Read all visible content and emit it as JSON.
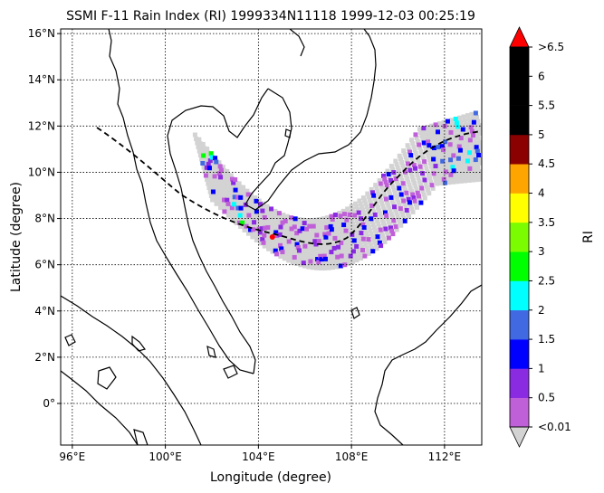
{
  "title": "SSMI F-11 Rain Index (RI) 1999334N11118 1999-12-03 00:25:19",
  "xlabel": "Longitude (degree)",
  "ylabel": "Latitude (degree)",
  "colorbar": {
    "label": "RI",
    "extend_max_label": ">6.5",
    "extend_min_label": "<0.01",
    "tick_labels": [
      "<0.01",
      "0.5",
      "1",
      "1.5",
      "2",
      "2.5",
      "3",
      "3.5",
      "4",
      "4.5",
      "5",
      "5.5",
      "6",
      ">6.5"
    ],
    "bins": [
      {
        "label": "<0.01",
        "color": "#c060d8"
      },
      {
        "label": "0.5",
        "color": "#8a2be2"
      },
      {
        "label": "1",
        "color": "#0000ff"
      },
      {
        "label": "1.5",
        "color": "#4169e1"
      },
      {
        "label": "2",
        "color": "#00ffff"
      },
      {
        "label": "2.5",
        "color": "#00ff00"
      },
      {
        "label": "3",
        "color": "#7cfc00"
      },
      {
        "label": "3.5",
        "color": "#ffff00"
      },
      {
        "label": "4",
        "color": "#ffa500"
      },
      {
        "label": "4.5",
        "color": "#8b0000"
      },
      {
        "label": "5",
        "color": "#000000"
      },
      {
        "label": "5.5",
        "color": "#000000"
      },
      {
        "label": "6",
        "color": "#000000"
      }
    ],
    "over_color": "#ff0000",
    "under_color": "#d3d3d3"
  },
  "map": {
    "lon_range": [
      95.5,
      113.6
    ],
    "lat_range": [
      -1.8,
      16.2
    ],
    "x_ticks": [
      "96°E",
      "100°E",
      "104°E",
      "108°E",
      "112°E"
    ],
    "y_ticks": [
      "0°",
      "2°N",
      "4°N",
      "6°N",
      "8°N",
      "10°N",
      "12°N",
      "14°N",
      "16°N"
    ],
    "grid": "dotted",
    "storm_center": {
      "lon": 104.6,
      "lat": 7.2,
      "color": "#ff0000"
    }
  }
}
